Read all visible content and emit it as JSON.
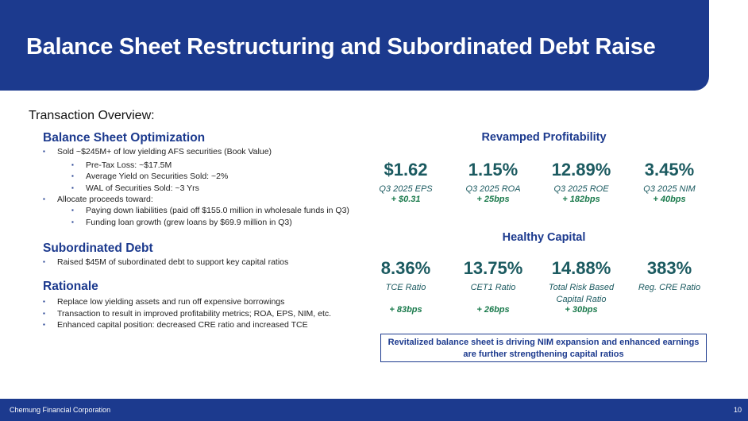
{
  "title": "Balance Sheet Restructuring and Subordinated Debt Raise",
  "overview": "Transaction Overview:",
  "left": {
    "bso": {
      "heading": "Balance Sheet Optimization",
      "items": [
        "Sold ~$245M+ of low yielding AFS securities (Book Value)",
        "Pre-Tax Loss: ~$17.5M",
        "Average Yield on Securities Sold: ~2%",
        "WAL of Securities Sold: ~3 Yrs",
        "Allocate proceeds toward:",
        "Paying down liabilities (paid off $155.0 million in wholesale funds in Q3)",
        "Funding loan growth (grew loans by $69.9 million in Q3)"
      ]
    },
    "sub": {
      "heading": "Subordinated Debt",
      "items": [
        "Raised $45M of subordinated debt to support key capital ratios"
      ]
    },
    "rat": {
      "heading": "Rationale",
      "items": [
        "Replace low yielding assets and run off expensive borrowings",
        "Transaction to result in improved profitability metrics; ROA, EPS, NIM, etc.",
        "Enhanced capital position: decreased CRE ratio and increased TCE"
      ]
    }
  },
  "profitability": {
    "heading": "Revamped Profitability",
    "metrics": [
      {
        "value": "$1.62",
        "label": "Q3 2025 EPS",
        "change": "+ $0.31"
      },
      {
        "value": "1.15%",
        "label": "Q3 2025 ROA",
        "change": "+ 25bps"
      },
      {
        "value": "12.89%",
        "label": "Q3 2025 ROE",
        "change": "+ 182bps"
      },
      {
        "value": "3.45%",
        "label": "Q3 2025 NIM",
        "change": "+ 40bps"
      }
    ]
  },
  "capital": {
    "heading": "Healthy Capital",
    "metrics": [
      {
        "value": "8.36%",
        "label": "TCE Ratio",
        "change": "+ 83bps"
      },
      {
        "value": "13.75%",
        "label": "CET1 Ratio",
        "change": "+ 26bps"
      },
      {
        "value": "14.88%",
        "label": "Total Risk Based Capital Ratio",
        "change": "+ 30bps"
      },
      {
        "value": "383%",
        "label": "Reg. CRE Ratio"
      }
    ]
  },
  "callout": "Revitalized balance sheet is driving NIM expansion and enhanced earnings are further strengthening capital ratios",
  "footer": {
    "company": "Chemung Financial Corporation",
    "page": "10"
  }
}
